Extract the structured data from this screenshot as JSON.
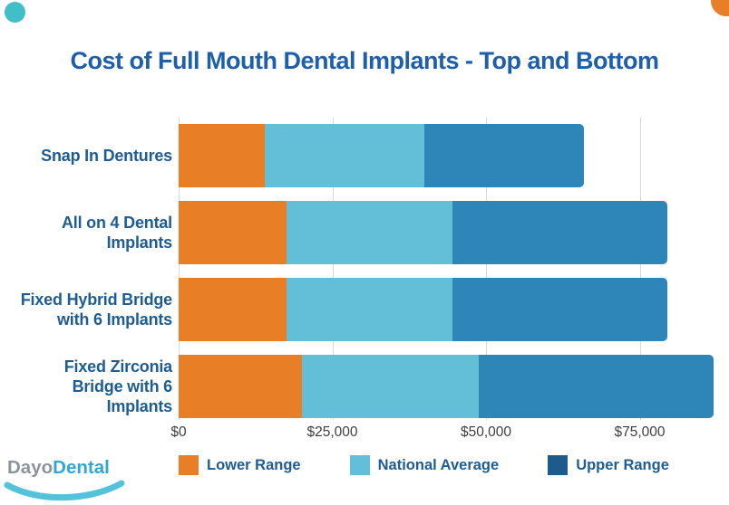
{
  "page": {
    "background": "#FFFFFF"
  },
  "decorations": {
    "top_left_circle_color": "#41BFC8",
    "top_right_circle_color": "#E87E26"
  },
  "title": {
    "text": "Cost of Full Mouth Dental Implants - Top and Bottom",
    "color": "#1E5FAC"
  },
  "chart_data": {
    "type": "bar",
    "subtype": "horizontal-stacked-range",
    "title": "Cost of Full Mouth Dental Implants - Top and Bottom",
    "categories": [
      "Snap In Dentures",
      "All on 4 Dental Implants",
      "Fixed Hybrid Bridge with 6 Implants",
      "Fixed Zirconia Bridge with 6 Implants"
    ],
    "category_label_lines": [
      [
        "Snap In Dentures"
      ],
      [
        "All on 4 Dental",
        "Implants"
      ],
      [
        "Fixed Hybrid Bridge",
        "with 6 Implants"
      ],
      [
        "Fixed Zirconia",
        "Bridge with 6",
        "Implants"
      ]
    ],
    "series": [
      {
        "name": "Lower Range",
        "color": "#E87E26",
        "endpoints": [
          14000,
          17500,
          17500,
          20000
        ]
      },
      {
        "name": "National Average",
        "color": "#63BFD8",
        "endpoints": [
          40000,
          44500,
          44500,
          48750
        ]
      },
      {
        "name": "Upper Range",
        "color": "#2E86B8",
        "endpoints": [
          66000,
          79500,
          79500,
          87000
        ]
      }
    ],
    "value_encoding": "each series value is the cumulative dollar position where that colored segment ends",
    "x_ticks": [
      {
        "label": "$0",
        "value": 0
      },
      {
        "label": "$25,000",
        "value": 25000
      },
      {
        "label": "$50,000",
        "value": 50000
      },
      {
        "label": "$75,000",
        "value": 75000
      }
    ],
    "xlim": [
      0,
      87700
    ],
    "grid": "vertical light gray",
    "legend_position": "bottom"
  },
  "legend": {
    "items": [
      {
        "label": "Lower Range",
        "color": "#E87E26"
      },
      {
        "label": "National Average",
        "color": "#63BFD8"
      },
      {
        "label": "Upper Range",
        "color": "#1F5A8C"
      }
    ]
  },
  "axis": {
    "tick_color": "#3F3F3F",
    "gridline_color": "#D9D9D9",
    "label_color": "#1E5C94"
  },
  "logo": {
    "part1": "Dayo",
    "part2": "Dental",
    "part1_color": "#8E939A",
    "part2_color": "#2FA8D8",
    "swoosh_color": "#53C3DB"
  }
}
